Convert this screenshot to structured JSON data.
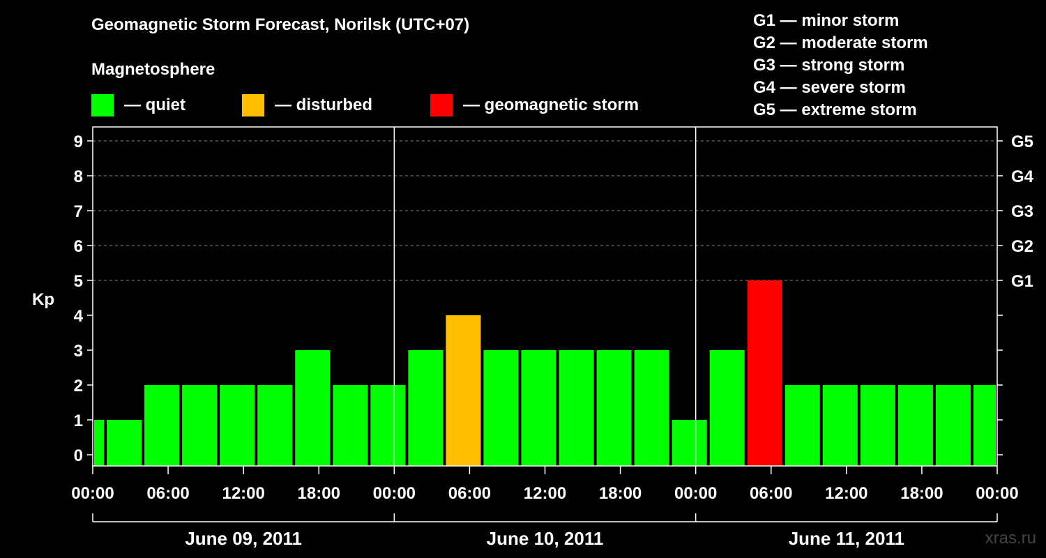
{
  "title": "Geomagnetic Storm Forecast, Norilsk (UTC+07)",
  "magnetosphere": {
    "label": "Magnetosphere",
    "legend": [
      {
        "label": "— quiet",
        "color": "#00ff00"
      },
      {
        "label": "— disturbed",
        "color": "#ffbf00"
      },
      {
        "label": "— geomagnetic storm",
        "color": "#ff0000"
      }
    ]
  },
  "storm_scale": [
    "G1 — minor storm",
    "G2 — moderate storm",
    "G3 — strong storm",
    "G4 — severe storm",
    "G5 — extreme storm"
  ],
  "watermark": "xras.ru",
  "chart_data": {
    "type": "bar",
    "ylabel": "Kp",
    "ylim": [
      0,
      9
    ],
    "yticks": [
      "0",
      "1",
      "2",
      "3",
      "4",
      "5",
      "6",
      "7",
      "8",
      "9"
    ],
    "right_axis_labels": [
      {
        "kp": 5,
        "label": "G1"
      },
      {
        "kp": 6,
        "label": "G2"
      },
      {
        "kp": 7,
        "label": "G3"
      },
      {
        "kp": 8,
        "label": "G4"
      },
      {
        "kp": 9,
        "label": "G5"
      }
    ],
    "x_tick_labels": [
      "00:00",
      "06:00",
      "12:00",
      "18:00",
      "00:00",
      "06:00",
      "12:00",
      "18:00",
      "00:00",
      "06:00",
      "12:00",
      "18:00",
      "00:00"
    ],
    "days": [
      "June 09, 2011",
      "June 10, 2011",
      "June 11, 2011"
    ],
    "bars": [
      {
        "start_hour": 0,
        "value": 1,
        "level": "quiet"
      },
      {
        "start_hour": 1,
        "value": 1,
        "level": "quiet"
      },
      {
        "start_hour": 4,
        "value": 2,
        "level": "quiet"
      },
      {
        "start_hour": 7,
        "value": 2,
        "level": "quiet"
      },
      {
        "start_hour": 10,
        "value": 2,
        "level": "quiet"
      },
      {
        "start_hour": 13,
        "value": 2,
        "level": "quiet"
      },
      {
        "start_hour": 16,
        "value": 3,
        "level": "quiet"
      },
      {
        "start_hour": 19,
        "value": 2,
        "level": "quiet"
      },
      {
        "start_hour": 22,
        "value": 2,
        "level": "quiet"
      },
      {
        "start_hour": 25,
        "value": 3,
        "level": "quiet"
      },
      {
        "start_hour": 28,
        "value": 4,
        "level": "disturbed"
      },
      {
        "start_hour": 31,
        "value": 3,
        "level": "quiet"
      },
      {
        "start_hour": 34,
        "value": 3,
        "level": "quiet"
      },
      {
        "start_hour": 37,
        "value": 3,
        "level": "quiet"
      },
      {
        "start_hour": 40,
        "value": 3,
        "level": "quiet"
      },
      {
        "start_hour": 43,
        "value": 3,
        "level": "quiet"
      },
      {
        "start_hour": 46,
        "value": 1,
        "level": "quiet"
      },
      {
        "start_hour": 49,
        "value": 3,
        "level": "quiet"
      },
      {
        "start_hour": 52,
        "value": 5,
        "level": "storm"
      },
      {
        "start_hour": 55,
        "value": 2,
        "level": "quiet"
      },
      {
        "start_hour": 58,
        "value": 2,
        "level": "quiet"
      },
      {
        "start_hour": 61,
        "value": 2,
        "level": "quiet"
      },
      {
        "start_hour": 64,
        "value": 2,
        "level": "quiet"
      },
      {
        "start_hour": 67,
        "value": 2,
        "level": "quiet"
      },
      {
        "start_hour": 70,
        "value": 2,
        "level": "quiet"
      }
    ],
    "colors": {
      "quiet": "#00ff00",
      "disturbed": "#ffbf00",
      "storm": "#ff0000"
    },
    "grid": "dashed horizontal lines at Kp 5 through 9"
  }
}
